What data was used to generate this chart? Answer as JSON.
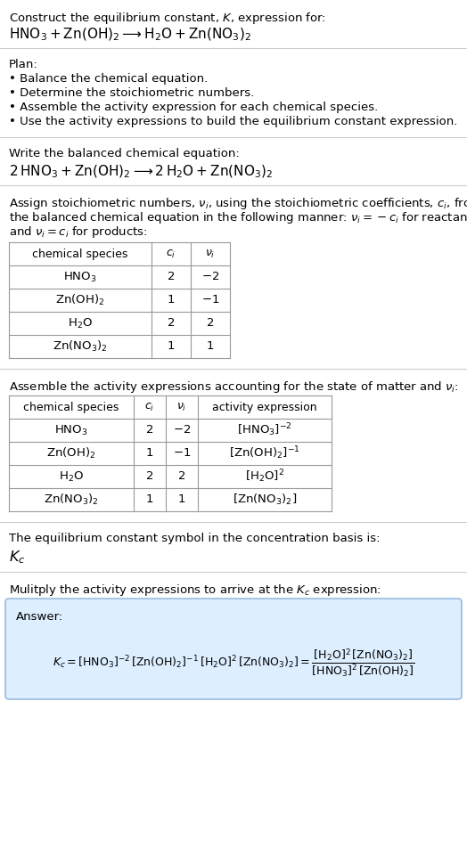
{
  "title_line1": "Construct the equilibrium constant, $K$, expression for:",
  "title_line2": "$\\mathrm{HNO_3 + Zn(OH)_2 \\longrightarrow H_2O + Zn(NO_3)_2}$",
  "plan_header": "Plan:",
  "plan_items": [
    "• Balance the chemical equation.",
    "• Determine the stoichiometric numbers.",
    "• Assemble the activity expression for each chemical species.",
    "• Use the activity expressions to build the equilibrium constant expression."
  ],
  "balanced_header": "Write the balanced chemical equation:",
  "balanced_eq": "$\\mathrm{2\\,HNO_3 + Zn(OH)_2 \\longrightarrow 2\\,H_2O + Zn(NO_3)_2}$",
  "stoich_header_parts": [
    "Assign stoichiometric numbers, $\\nu_i$, using the stoichiometric coefficients, $c_i$, from",
    "the balanced chemical equation in the following manner: $\\nu_i = -c_i$ for reactants",
    "and $\\nu_i = c_i$ for products:"
  ],
  "table1_headers": [
    "chemical species",
    "$c_i$",
    "$\\nu_i$"
  ],
  "table1_data": [
    [
      "$\\mathrm{HNO_3}$",
      "2",
      "$-2$"
    ],
    [
      "$\\mathrm{Zn(OH)_2}$",
      "1",
      "$-1$"
    ],
    [
      "$\\mathrm{H_2O}$",
      "2",
      "2"
    ],
    [
      "$\\mathrm{Zn(NO_3)_2}$",
      "1",
      "1"
    ]
  ],
  "activity_header": "Assemble the activity expressions accounting for the state of matter and $\\nu_i$:",
  "table2_headers": [
    "chemical species",
    "$c_i$",
    "$\\nu_i$",
    "activity expression"
  ],
  "table2_data": [
    [
      "$\\mathrm{HNO_3}$",
      "2",
      "$-2$",
      "$[\\mathrm{HNO_3}]^{-2}$"
    ],
    [
      "$\\mathrm{Zn(OH)_2}$",
      "1",
      "$-1$",
      "$[\\mathrm{Zn(OH)_2}]^{-1}$"
    ],
    [
      "$\\mathrm{H_2O}$",
      "2",
      "2",
      "$[\\mathrm{H_2O}]^2$"
    ],
    [
      "$\\mathrm{Zn(NO_3)_2}$",
      "1",
      "1",
      "$[\\mathrm{Zn(NO_3)_2}]$"
    ]
  ],
  "kc_symbol_text": "The equilibrium constant symbol in the concentration basis is:",
  "kc_symbol": "$K_c$",
  "multiply_text": "Mulitply the activity expressions to arrive at the $K_c$ expression:",
  "answer_label": "Answer:",
  "kc_line1": "$K_c = [\\mathrm{HNO_3}]^{-2}\\,[\\mathrm{Zn(OH)_2}]^{-1}\\,[\\mathrm{H_2O}]^2\\,[\\mathrm{Zn(NO_3)_2}] = \\dfrac{[\\mathrm{H_2O}]^2\\,[\\mathrm{Zn(NO_3)_2}]}{[\\mathrm{HNO_3}]^2\\,[\\mathrm{Zn(OH)_2}]}$",
  "bg_color": "#ffffff",
  "answer_box_color": "#ddeeff",
  "answer_box_edge": "#99bbdd",
  "divider_color": "#cccccc",
  "table_border_color": "#999999",
  "text_color": "#000000",
  "font_size": 9.5
}
